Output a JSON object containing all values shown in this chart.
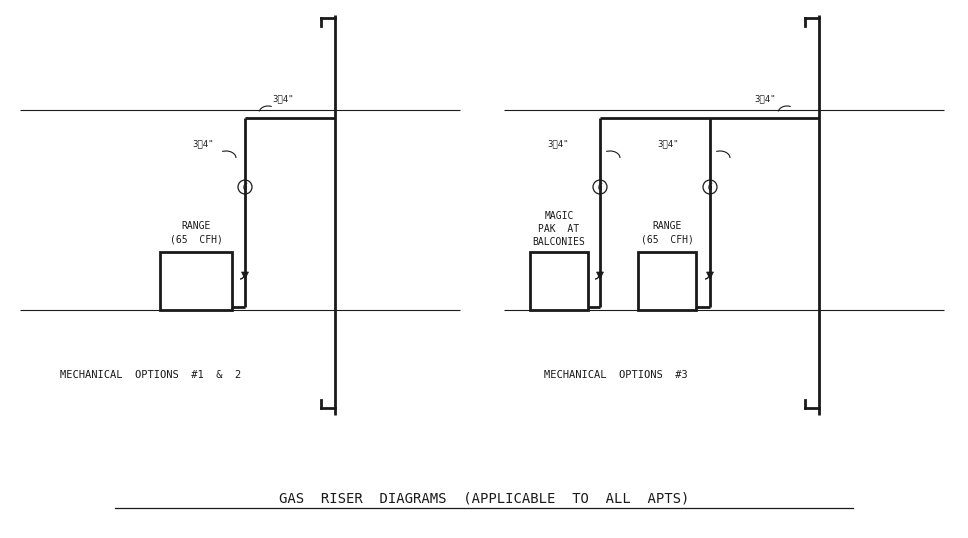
{
  "bg_color": "#ffffff",
  "line_color": "#1a1a1a",
  "title": "GAS  RISER  DIAGRAMS  (APPLICABLE  TO  ALL  APTS)",
  "diagram1_label": "MECHANICAL  OPTIONS  #1  &  2",
  "diagram2_label": "MECHANICAL  OPTIONS  #3",
  "label1_range": "RANGE\n(65  CFH)",
  "label2_magic": "MAGIC\nPAK  AT\nBALCONIES",
  "label2_range": "RANGE\n(65  CFH)",
  "label_34_top": "3⁄4\"",
  "label_34_vert": "3⁄4\"",
  "label_G": "G"
}
